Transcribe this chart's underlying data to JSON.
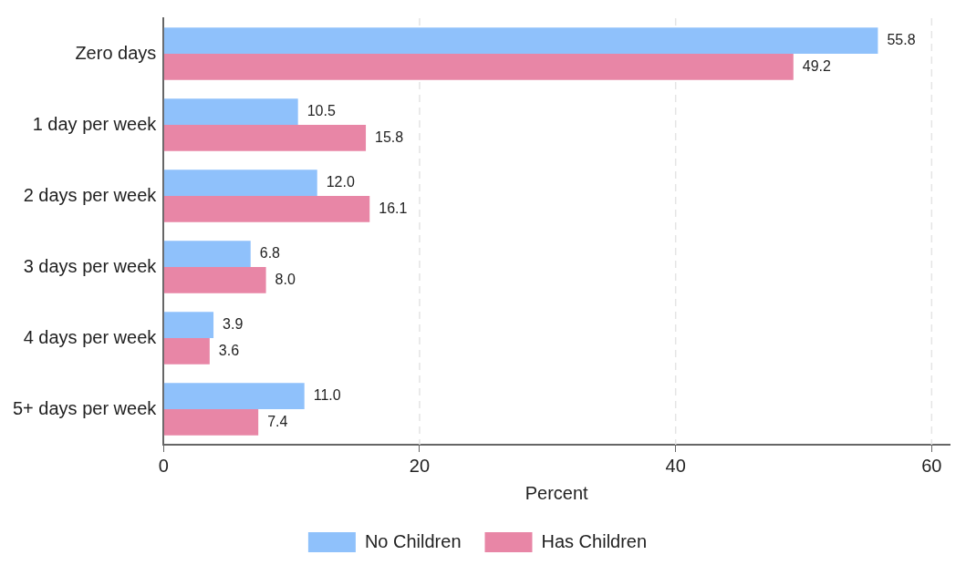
{
  "chart_data": {
    "type": "bar",
    "orientation": "horizontal",
    "xlabel": "Percent",
    "categories": [
      "Zero days",
      "1 day per week",
      "2 days per week",
      "3 days per week",
      "4 days per week",
      "5+ days per week"
    ],
    "series": [
      {
        "name": "No Children",
        "color": "#8fc1fb",
        "values": [
          55.8,
          10.5,
          12.0,
          6.8,
          3.9,
          11.0
        ],
        "value_labels": [
          "55.8",
          "10.5",
          "12.0",
          "6.8",
          "3.9",
          "11.0"
        ]
      },
      {
        "name": "Has Children",
        "color": "#e886a6",
        "values": [
          49.2,
          15.8,
          16.1,
          8.0,
          3.6,
          7.4
        ],
        "value_labels": [
          "49.2",
          "15.8",
          "16.1",
          "8.0",
          "3.6",
          "7.4"
        ]
      }
    ],
    "xlim": [
      0,
      61.4
    ],
    "xticks": [
      0,
      20,
      40,
      60
    ],
    "grid": "x",
    "legend": "bottom"
  }
}
